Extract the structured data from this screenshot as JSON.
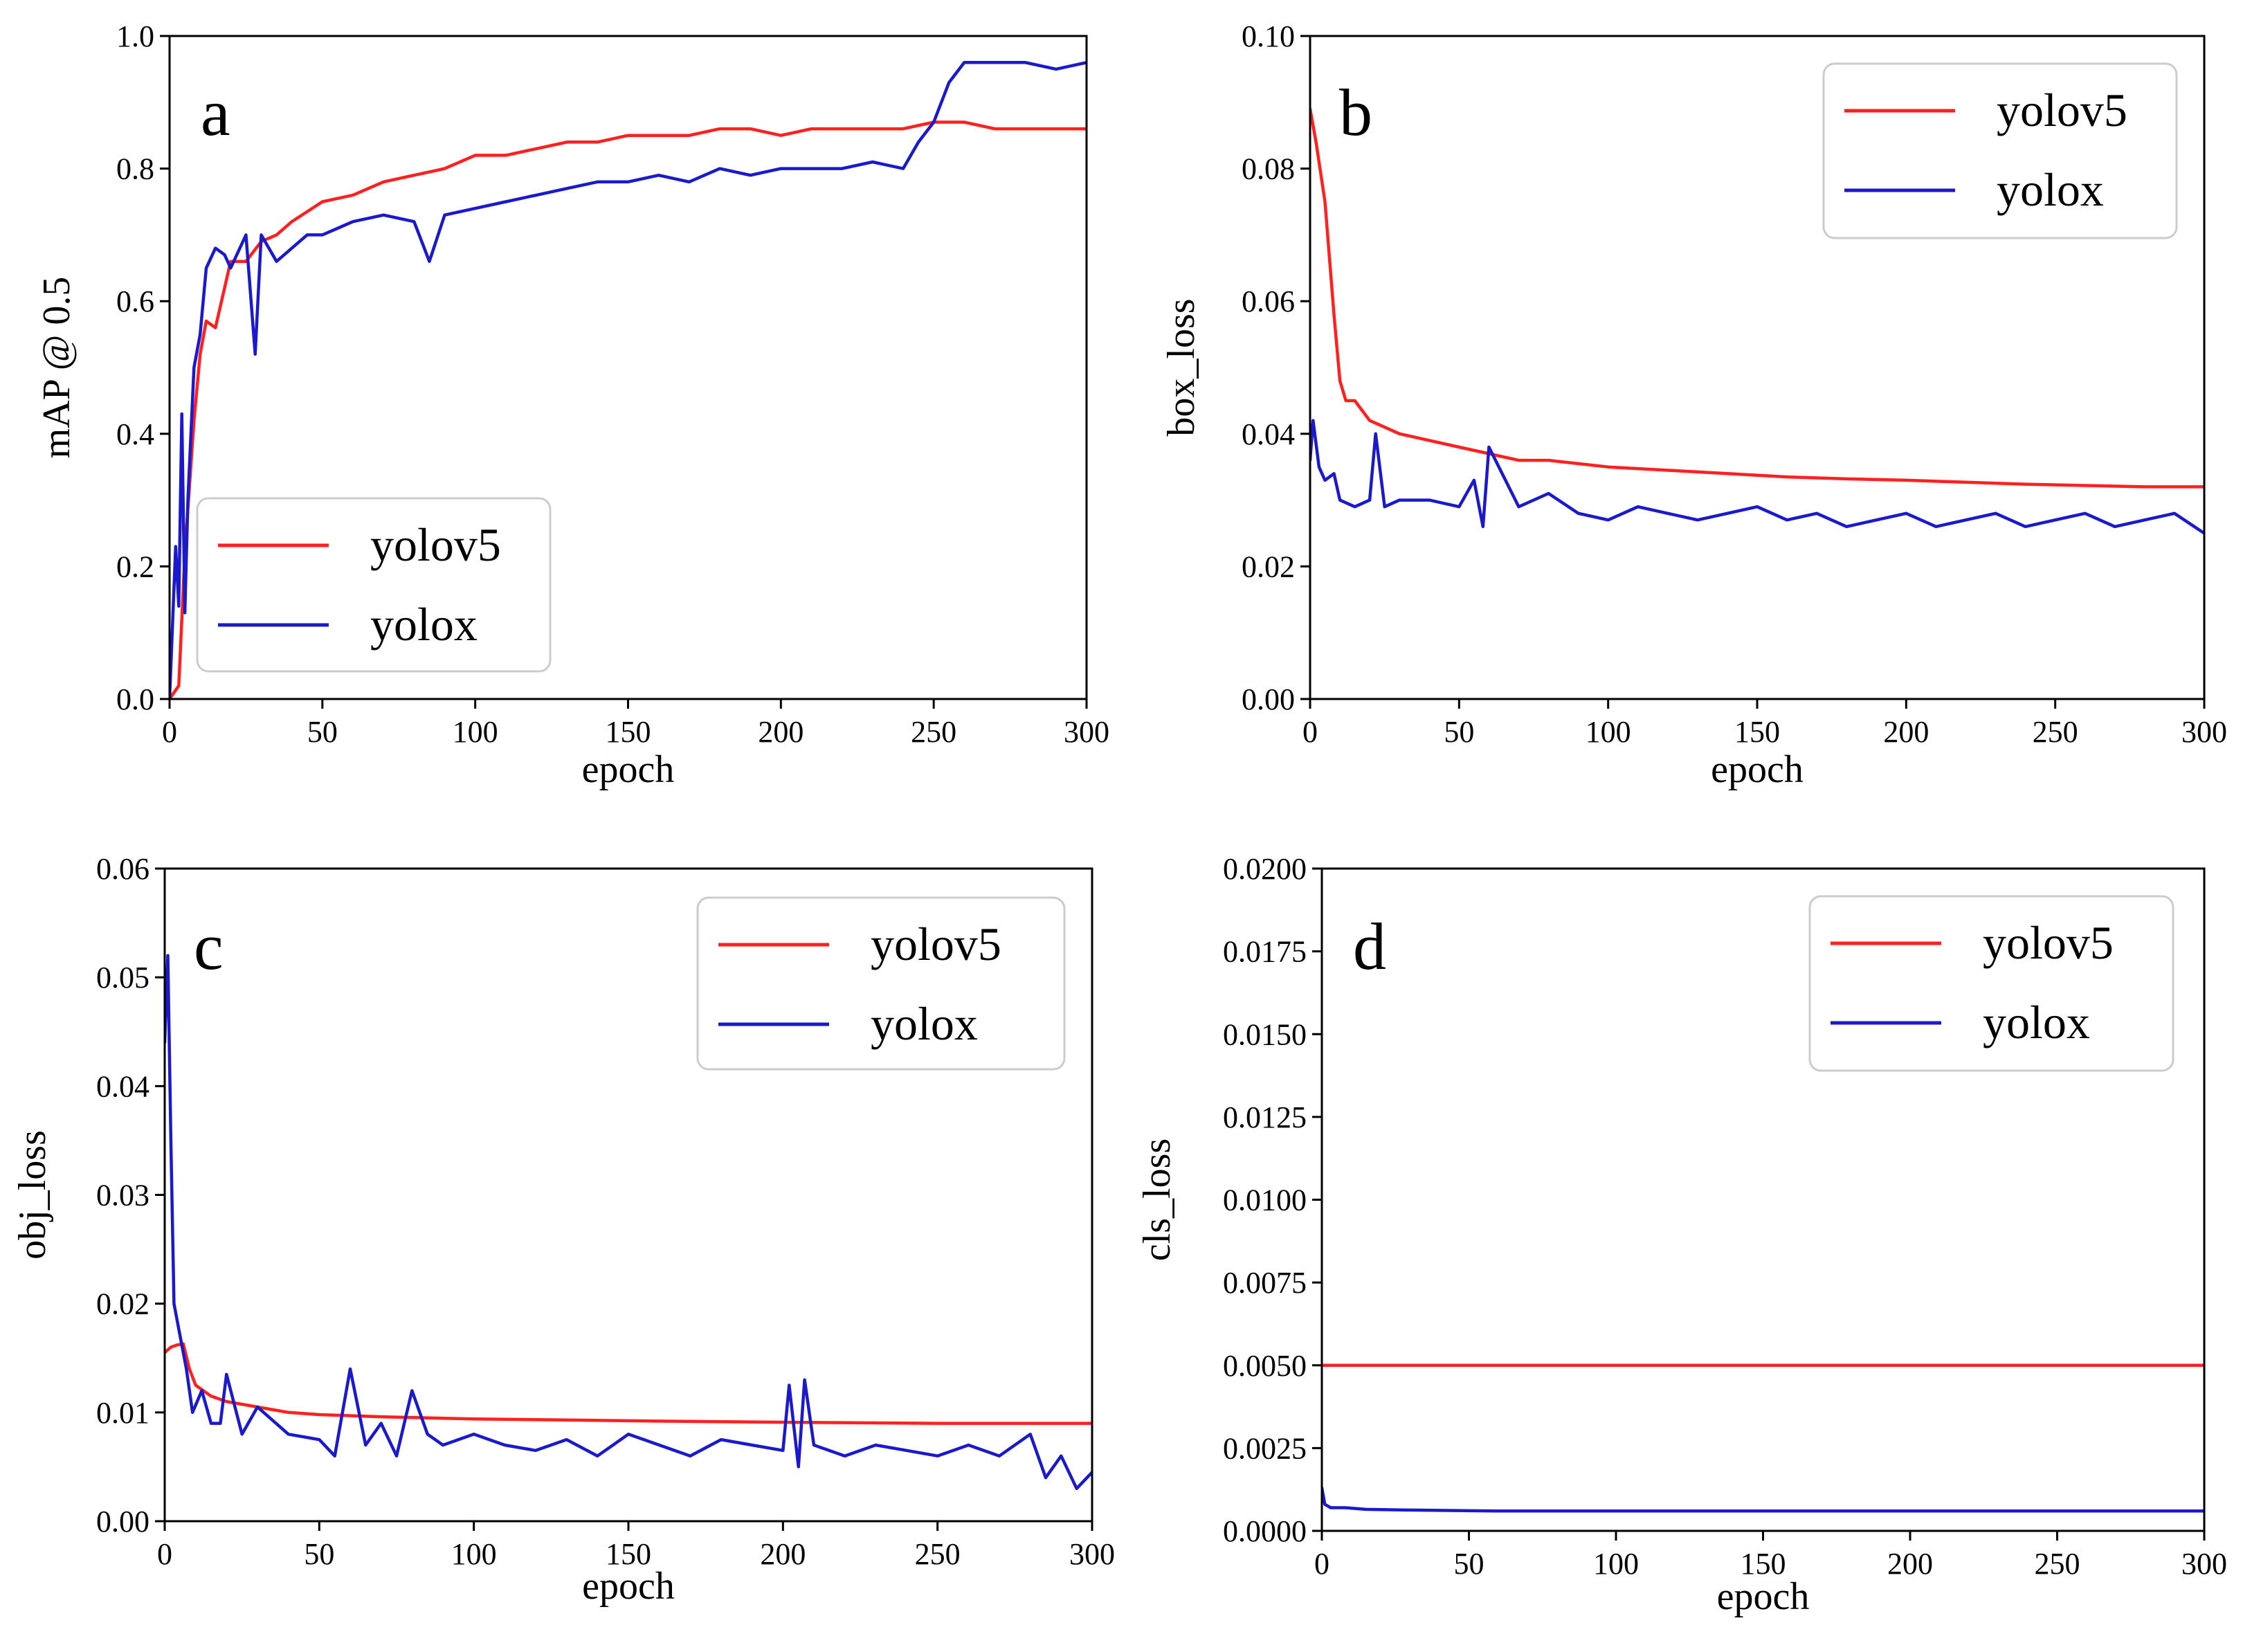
{
  "chart_data": [
    {
      "panel": "a",
      "type": "line",
      "xlabel": "epoch",
      "ylabel": "mAP @ 0.5",
      "xlim": [
        0,
        300
      ],
      "ylim": [
        0,
        1.0
      ],
      "xticks": [
        0,
        50,
        100,
        150,
        200,
        250,
        300
      ],
      "xtick_labels": [
        "0",
        "50",
        "100",
        "150",
        "200",
        "250",
        "300"
      ],
      "yticks": [
        0,
        0.2,
        0.4,
        0.6,
        0.8,
        1.0
      ],
      "ytick_labels": [
        "0.0",
        "0.2",
        "0.4",
        "0.6",
        "0.8",
        "1.0"
      ],
      "legend_loc": "lower-left",
      "series": [
        {
          "name": "yolov5",
          "color": "#ff2020",
          "x": [
            0,
            3,
            5,
            8,
            10,
            12,
            15,
            20,
            25,
            30,
            35,
            40,
            50,
            60,
            70,
            80,
            90,
            100,
            110,
            120,
            130,
            140,
            150,
            160,
            170,
            180,
            190,
            200,
            210,
            220,
            230,
            240,
            250,
            260,
            270,
            280,
            290,
            300
          ],
          "values": [
            0.0,
            0.02,
            0.22,
            0.42,
            0.52,
            0.57,
            0.56,
            0.66,
            0.66,
            0.69,
            0.7,
            0.72,
            0.75,
            0.76,
            0.78,
            0.79,
            0.8,
            0.82,
            0.82,
            0.83,
            0.84,
            0.84,
            0.85,
            0.85,
            0.85,
            0.86,
            0.86,
            0.85,
            0.86,
            0.86,
            0.86,
            0.86,
            0.87,
            0.87,
            0.86,
            0.86,
            0.86,
            0.86
          ]
        },
        {
          "name": "yolox",
          "color": "#1a1acc",
          "x": [
            0,
            2,
            3,
            4,
            5,
            6,
            8,
            10,
            12,
            15,
            18,
            20,
            25,
            28,
            30,
            35,
            40,
            45,
            50,
            60,
            70,
            80,
            85,
            90,
            100,
            110,
            120,
            130,
            140,
            150,
            160,
            170,
            180,
            190,
            200,
            210,
            220,
            230,
            240,
            245,
            250,
            255,
            260,
            270,
            280,
            290,
            300
          ],
          "values": [
            0.0,
            0.23,
            0.14,
            0.43,
            0.13,
            0.3,
            0.5,
            0.55,
            0.65,
            0.68,
            0.67,
            0.65,
            0.7,
            0.52,
            0.7,
            0.66,
            0.68,
            0.7,
            0.7,
            0.72,
            0.73,
            0.72,
            0.66,
            0.73,
            0.74,
            0.75,
            0.76,
            0.77,
            0.78,
            0.78,
            0.79,
            0.78,
            0.8,
            0.79,
            0.8,
            0.8,
            0.8,
            0.81,
            0.8,
            0.84,
            0.87,
            0.93,
            0.96,
            0.96,
            0.96,
            0.95,
            0.96
          ]
        }
      ]
    },
    {
      "panel": "b",
      "type": "line",
      "xlabel": "epoch",
      "ylabel": "box_loss",
      "xlim": [
        0,
        300
      ],
      "ylim": [
        0,
        0.1
      ],
      "xticks": [
        0,
        50,
        100,
        150,
        200,
        250,
        300
      ],
      "xtick_labels": [
        "0",
        "50",
        "100",
        "150",
        "200",
        "250",
        "300"
      ],
      "yticks": [
        0,
        0.02,
        0.04,
        0.06,
        0.08,
        0.1
      ],
      "ytick_labels": [
        "0.00",
        "0.02",
        "0.04",
        "0.06",
        "0.08",
        "0.10"
      ],
      "legend_loc": "top-right",
      "series": [
        {
          "name": "yolov5",
          "color": "#ff2020",
          "x": [
            0,
            2,
            5,
            8,
            10,
            12,
            15,
            20,
            25,
            30,
            40,
            50,
            60,
            70,
            80,
            100,
            120,
            140,
            160,
            180,
            200,
            220,
            240,
            260,
            280,
            300
          ],
          "values": [
            0.089,
            0.084,
            0.075,
            0.058,
            0.048,
            0.045,
            0.045,
            0.042,
            0.041,
            0.04,
            0.039,
            0.038,
            0.037,
            0.036,
            0.036,
            0.035,
            0.0345,
            0.034,
            0.0335,
            0.0332,
            0.033,
            0.0327,
            0.0324,
            0.0322,
            0.032,
            0.032
          ]
        },
        {
          "name": "yolox",
          "color": "#1a1acc",
          "x": [
            0,
            1,
            3,
            5,
            8,
            10,
            15,
            20,
            22,
            25,
            30,
            40,
            50,
            55,
            58,
            60,
            70,
            80,
            90,
            100,
            110,
            120,
            130,
            140,
            150,
            160,
            170,
            180,
            190,
            200,
            210,
            220,
            230,
            240,
            250,
            260,
            270,
            280,
            290,
            300
          ],
          "values": [
            0.036,
            0.042,
            0.035,
            0.033,
            0.034,
            0.03,
            0.029,
            0.03,
            0.04,
            0.029,
            0.03,
            0.03,
            0.029,
            0.033,
            0.026,
            0.038,
            0.029,
            0.031,
            0.028,
            0.027,
            0.029,
            0.028,
            0.027,
            0.028,
            0.029,
            0.027,
            0.028,
            0.026,
            0.027,
            0.028,
            0.026,
            0.027,
            0.028,
            0.026,
            0.027,
            0.028,
            0.026,
            0.027,
            0.028,
            0.025
          ]
        }
      ]
    },
    {
      "panel": "c",
      "type": "line",
      "xlabel": "epoch",
      "ylabel": "obj_loss",
      "xlim": [
        0,
        300
      ],
      "ylim": [
        0,
        0.06
      ],
      "xticks": [
        0,
        50,
        100,
        150,
        200,
        250,
        300
      ],
      "xtick_labels": [
        "0",
        "50",
        "100",
        "150",
        "200",
        "250",
        "300"
      ],
      "yticks": [
        0,
        0.01,
        0.02,
        0.03,
        0.04,
        0.05,
        0.06
      ],
      "ytick_labels": [
        "0.00",
        "0.01",
        "0.02",
        "0.03",
        "0.04",
        "0.05",
        "0.06"
      ],
      "legend_loc": "top-right",
      "series": [
        {
          "name": "yolov5",
          "color": "#ff2020",
          "x": [
            0,
            2,
            4,
            6,
            8,
            10,
            15,
            20,
            30,
            40,
            50,
            70,
            100,
            130,
            160,
            200,
            250,
            300
          ],
          "values": [
            0.0155,
            0.016,
            0.0162,
            0.0163,
            0.014,
            0.0125,
            0.0115,
            0.011,
            0.0105,
            0.01,
            0.0098,
            0.0096,
            0.0094,
            0.0093,
            0.0092,
            0.0091,
            0.009,
            0.009
          ]
        },
        {
          "name": "yolox",
          "color": "#1a1acc",
          "x": [
            0,
            1,
            2,
            3,
            5,
            7,
            9,
            12,
            15,
            18,
            20,
            25,
            30,
            40,
            50,
            55,
            60,
            65,
            70,
            75,
            80,
            85,
            90,
            100,
            110,
            120,
            130,
            140,
            150,
            160,
            170,
            180,
            190,
            200,
            202,
            205,
            207,
            210,
            220,
            230,
            240,
            250,
            260,
            270,
            280,
            285,
            290,
            295,
            300
          ],
          "values": [
            0.044,
            0.052,
            0.035,
            0.02,
            0.017,
            0.014,
            0.01,
            0.012,
            0.009,
            0.009,
            0.0135,
            0.008,
            0.0105,
            0.008,
            0.0075,
            0.006,
            0.014,
            0.007,
            0.009,
            0.006,
            0.012,
            0.008,
            0.007,
            0.008,
            0.007,
            0.0065,
            0.0075,
            0.006,
            0.008,
            0.007,
            0.006,
            0.0075,
            0.007,
            0.0065,
            0.0125,
            0.005,
            0.013,
            0.007,
            0.006,
            0.007,
            0.0065,
            0.006,
            0.007,
            0.006,
            0.008,
            0.004,
            0.006,
            0.003,
            0.0045
          ]
        }
      ]
    },
    {
      "panel": "d",
      "type": "line",
      "xlabel": "epoch",
      "ylabel": "cls_loss",
      "xlim": [
        0,
        300
      ],
      "ylim": [
        0,
        0.02
      ],
      "xticks": [
        0,
        50,
        100,
        150,
        200,
        250,
        300
      ],
      "xtick_labels": [
        "0",
        "50",
        "100",
        "150",
        "200",
        "250",
        "300"
      ],
      "yticks": [
        0,
        0.0025,
        0.005,
        0.0075,
        0.01,
        0.0125,
        0.015,
        0.0175,
        0.02
      ],
      "ytick_labels": [
        "0.0000",
        "0.0025",
        "0.0050",
        "0.0075",
        "0.0100",
        "0.0125",
        "0.0150",
        "0.0175",
        "0.0200"
      ],
      "legend_loc": "top-right",
      "series": [
        {
          "name": "yolov5",
          "color": "#ff2020",
          "x": [
            0,
            300
          ],
          "values": [
            0.005,
            0.005
          ]
        },
        {
          "name": "yolox",
          "color": "#1a1acc",
          "x": [
            0,
            1,
            3,
            8,
            15,
            30,
            60,
            100,
            150,
            200,
            250,
            300
          ],
          "values": [
            0.0013,
            0.0008,
            0.0007,
            0.0007,
            0.00065,
            0.00063,
            0.0006,
            0.0006,
            0.0006,
            0.0006,
            0.0006,
            0.0006
          ]
        }
      ]
    }
  ]
}
